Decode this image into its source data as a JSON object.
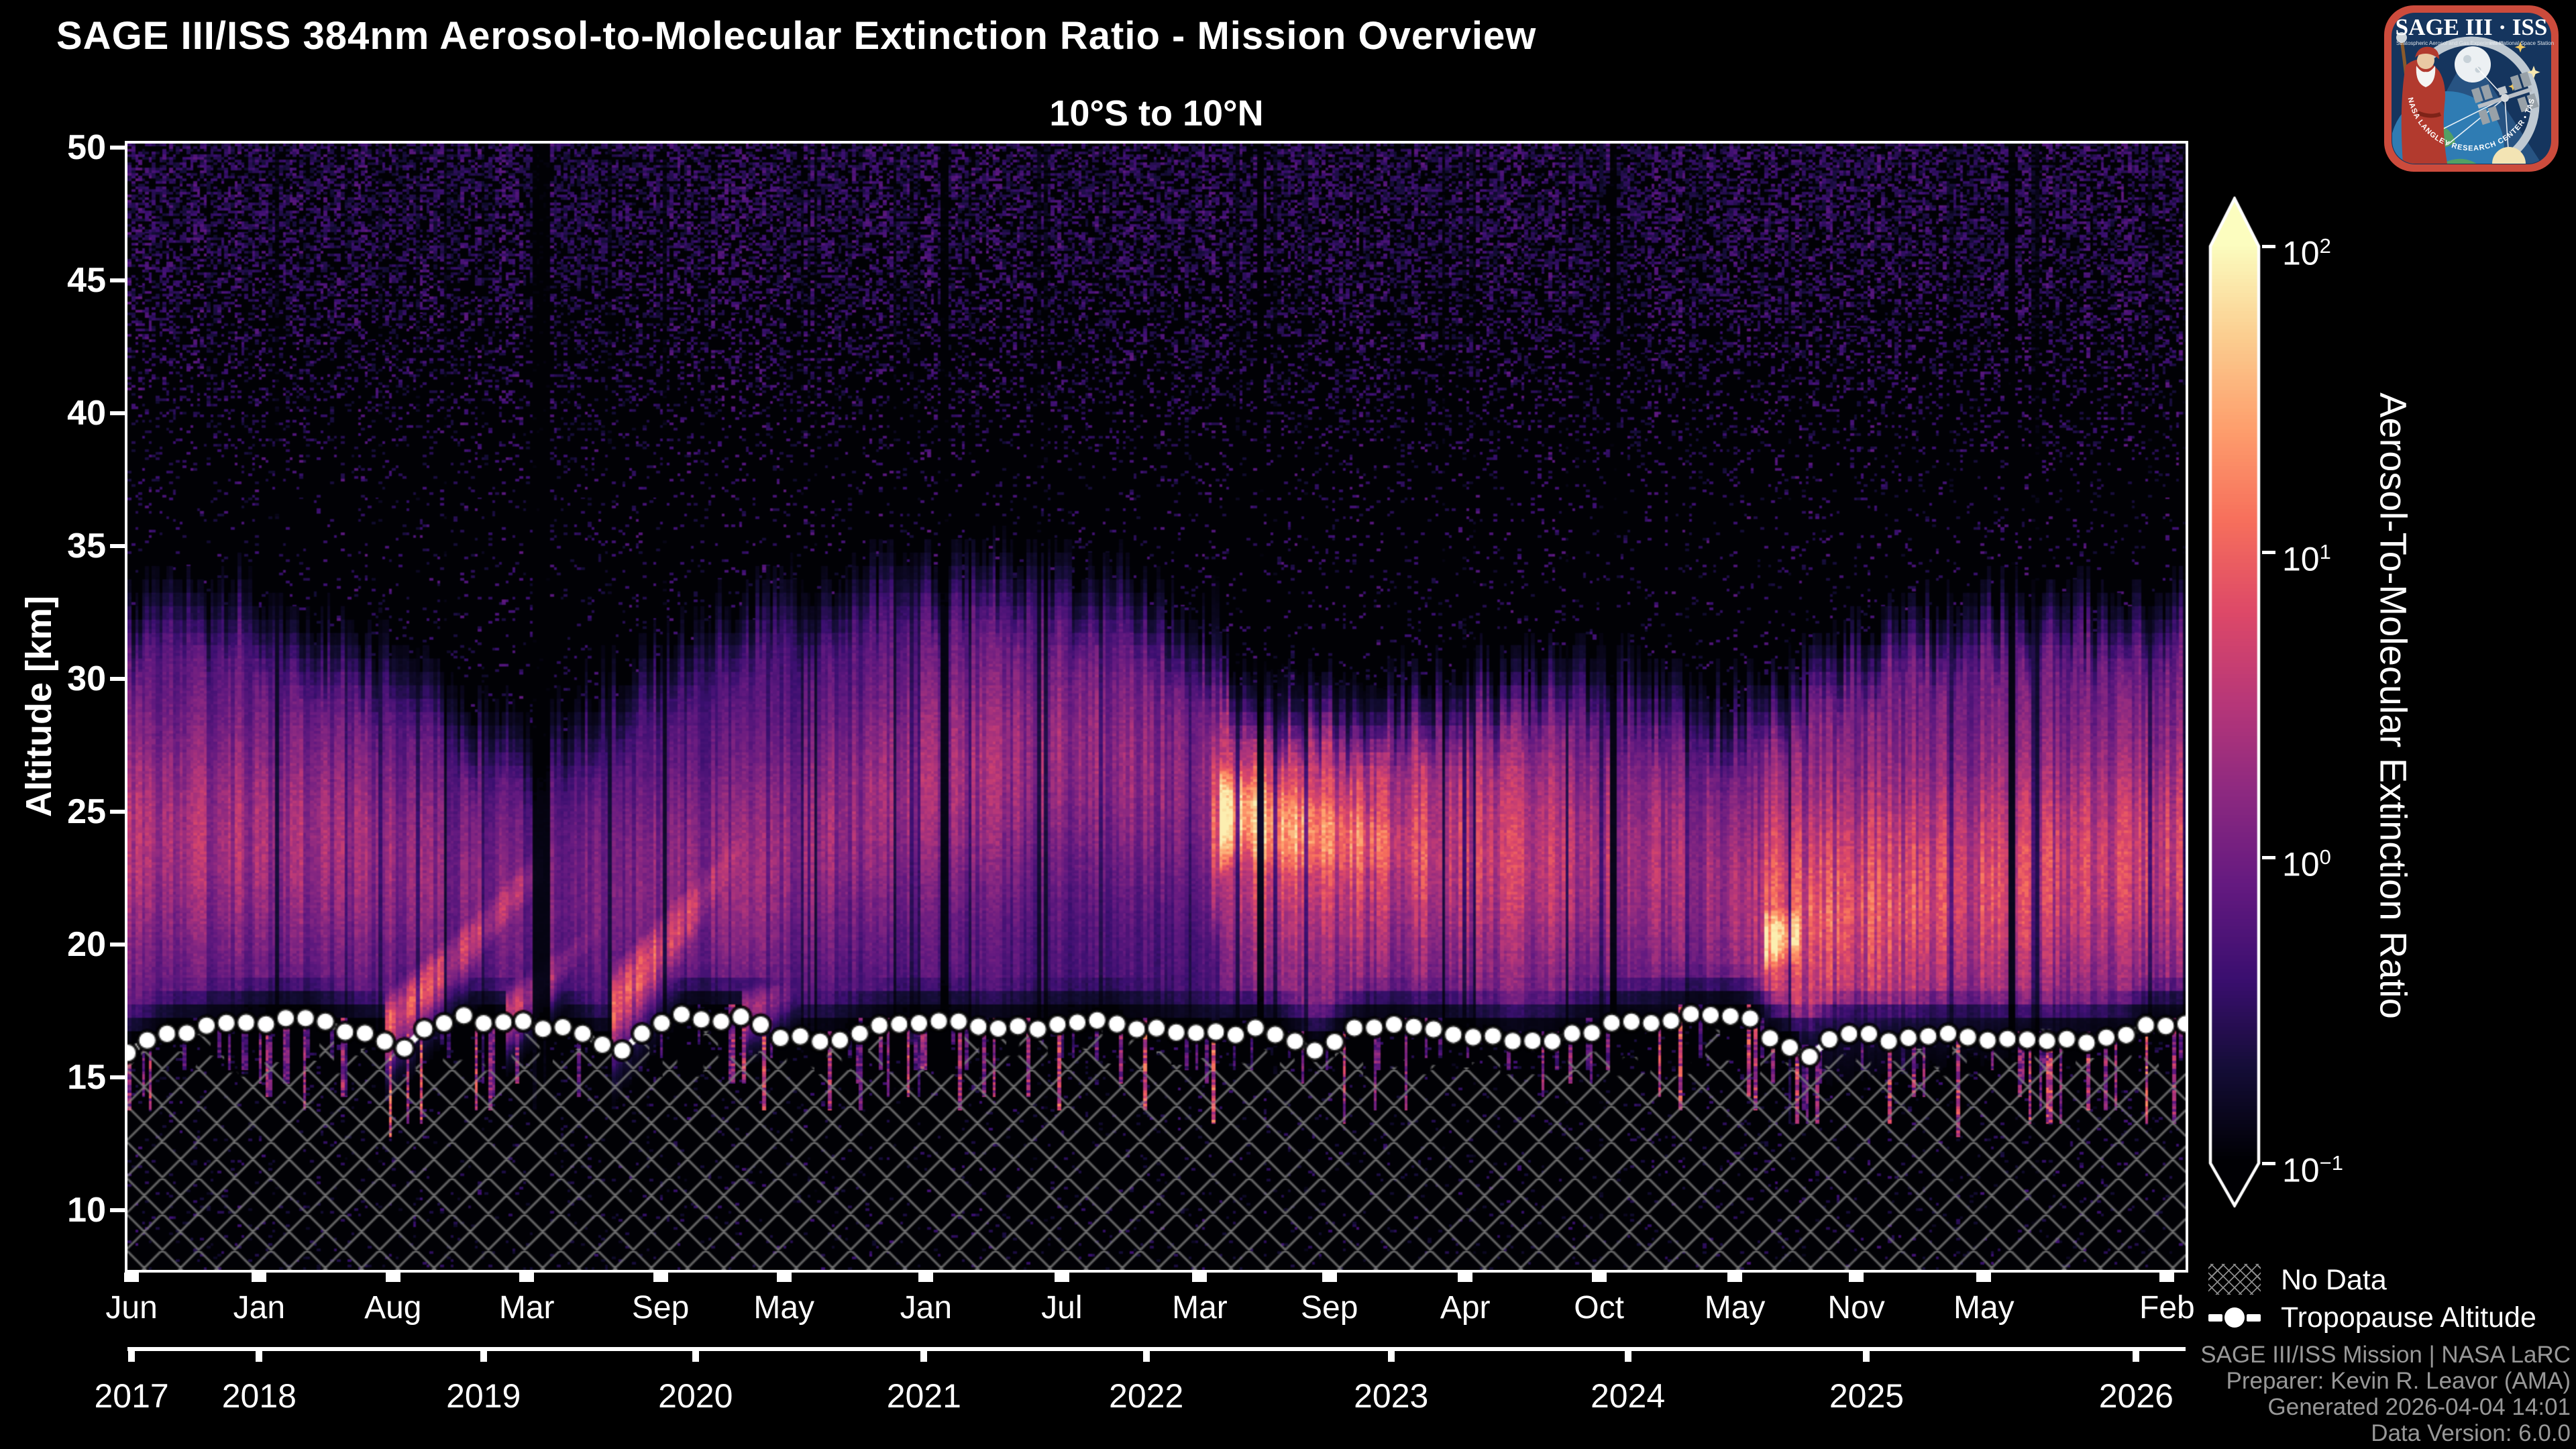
{
  "chart_data": {
    "type": "heatmap",
    "title": "SAGE III/ISS 384nm Aerosol-to-Molecular Extinction Ratio - Mission Overview",
    "subtitle": "10°S to 10°N",
    "ylabel": "Altitude [km]",
    "xlabel": "",
    "colorbar": {
      "label": "Aerosol-To-Molecular Extinction Ratio",
      "scale": "log",
      "vmin": 0.1,
      "vmax": 100,
      "colormap": "magma",
      "ticks": [
        {
          "label": "10²",
          "base": "10",
          "exp": "2",
          "exp_n": 2,
          "value": 100
        },
        {
          "label": "10¹",
          "base": "10",
          "exp": "1",
          "exp_n": 1,
          "value": 10
        },
        {
          "label": "10⁰",
          "base": "10",
          "exp": "0",
          "exp_n": 0,
          "value": 1
        },
        {
          "label": "10⁻¹",
          "base": "10",
          "exp": "−1",
          "exp_n": -1,
          "value": 0.1
        }
      ],
      "colormap_anchors": [
        [
          0.0,
          "#000004"
        ],
        [
          0.1,
          "#140d36"
        ],
        [
          0.2,
          "#3b0f70"
        ],
        [
          0.3,
          "#641a80"
        ],
        [
          0.4,
          "#8c2981"
        ],
        [
          0.5,
          "#b73779"
        ],
        [
          0.6,
          "#de4968"
        ],
        [
          0.7,
          "#f7705c"
        ],
        [
          0.8,
          "#fe9f6d"
        ],
        [
          0.9,
          "#fbce90"
        ],
        [
          1.0,
          "#fcfdbf"
        ]
      ]
    },
    "x_axis": {
      "start": "2017-06",
      "end": "2026-02",
      "span_months": 104,
      "month_ticks": [
        {
          "label": "Jun",
          "f": 0.002
        },
        {
          "label": "Jan",
          "f": 0.064
        },
        {
          "label": "Aug",
          "f": 0.129
        },
        {
          "label": "Mar",
          "f": 0.194
        },
        {
          "label": "Sep",
          "f": 0.259
        },
        {
          "label": "May",
          "f": 0.319
        },
        {
          "label": "Jan",
          "f": 0.388
        },
        {
          "label": "Jul",
          "f": 0.454
        },
        {
          "label": "Mar",
          "f": 0.521
        },
        {
          "label": "Sep",
          "f": 0.584
        },
        {
          "label": "Apr",
          "f": 0.65
        },
        {
          "label": "Oct",
          "f": 0.715
        },
        {
          "label": "May",
          "f": 0.781
        },
        {
          "label": "Nov",
          "f": 0.84
        },
        {
          "label": "May",
          "f": 0.902
        },
        {
          "label": "Feb",
          "f": 0.991
        }
      ],
      "year_ticks": [
        {
          "label": "2017",
          "f": 0.002
        },
        {
          "label": "2018",
          "f": 0.064
        },
        {
          "label": "2019",
          "f": 0.173
        },
        {
          "label": "2020",
          "f": 0.276
        },
        {
          "label": "2021",
          "f": 0.387
        },
        {
          "label": "2022",
          "f": 0.495
        },
        {
          "label": "2023",
          "f": 0.614
        },
        {
          "label": "2024",
          "f": 0.729
        },
        {
          "label": "2025",
          "f": 0.845
        },
        {
          "label": "2026",
          "f": 0.976
        }
      ]
    },
    "y_axis": {
      "ticks": [
        50,
        45,
        40,
        35,
        30,
        25,
        20,
        15,
        10
      ],
      "alt_top": 50.15,
      "alt_bottom": 7.75
    },
    "legend": {
      "no_data": "No Data",
      "tropopause": "Tropopause Altitude"
    },
    "tropopause_altitude_km": [
      [
        0,
        16.0
      ],
      [
        1,
        16.3
      ],
      [
        2,
        16.6
      ],
      [
        3,
        16.7
      ],
      [
        4,
        16.8
      ],
      [
        5,
        16.9
      ],
      [
        6,
        17.0
      ],
      [
        7,
        17.1
      ],
      [
        8,
        17.1
      ],
      [
        9,
        17.2
      ],
      [
        10,
        17.0
      ],
      [
        11,
        16.8
      ],
      [
        12,
        16.7
      ],
      [
        13,
        16.4
      ],
      [
        14,
        16.1
      ],
      [
        15,
        16.9
      ],
      [
        16,
        17.1
      ],
      [
        17,
        17.3
      ],
      [
        18,
        17.1
      ],
      [
        19,
        17.0
      ],
      [
        20,
        17.0
      ],
      [
        21,
        16.9
      ],
      [
        22,
        16.9
      ],
      [
        23,
        16.5
      ],
      [
        24,
        16.2
      ],
      [
        25,
        16.1
      ],
      [
        26,
        16.6
      ],
      [
        27,
        17.1
      ],
      [
        28,
        17.3
      ],
      [
        29,
        17.3
      ],
      [
        30,
        17.2
      ],
      [
        31,
        17.2
      ],
      [
        32,
        17.1
      ],
      [
        33,
        16.6
      ],
      [
        34,
        16.4
      ],
      [
        35,
        16.4
      ],
      [
        36,
        16.5
      ],
      [
        37,
        16.7
      ],
      [
        38,
        16.9
      ],
      [
        39,
        17.0
      ],
      [
        40,
        17.1
      ],
      [
        41,
        17.0
      ],
      [
        42,
        17.0
      ],
      [
        43,
        16.8
      ],
      [
        44,
        16.8
      ],
      [
        45,
        16.9
      ],
      [
        46,
        16.9
      ],
      [
        47,
        17.0
      ],
      [
        48,
        17.0
      ],
      [
        49,
        17.1
      ],
      [
        50,
        17.1
      ],
      [
        51,
        16.9
      ],
      [
        52,
        16.8
      ],
      [
        53,
        16.7
      ],
      [
        54,
        16.6
      ],
      [
        55,
        16.6
      ],
      [
        56,
        16.7
      ],
      [
        57,
        16.8
      ],
      [
        58,
        16.7
      ],
      [
        59,
        16.4
      ],
      [
        60,
        15.9
      ],
      [
        61,
        16.3
      ],
      [
        62,
        16.8
      ],
      [
        63,
        16.9
      ],
      [
        64,
        16.9
      ],
      [
        65,
        16.8
      ],
      [
        66,
        16.8
      ],
      [
        67,
        16.7
      ],
      [
        68,
        16.6
      ],
      [
        69,
        16.5
      ],
      [
        70,
        16.4
      ],
      [
        71,
        16.4
      ],
      [
        72,
        16.5
      ],
      [
        73,
        16.7
      ],
      [
        74,
        16.8
      ],
      [
        75,
        16.9
      ],
      [
        76,
        17.0
      ],
      [
        77,
        17.1
      ],
      [
        78,
        17.2
      ],
      [
        79,
        17.3
      ],
      [
        80,
        17.3
      ],
      [
        81,
        17.4
      ],
      [
        82,
        17.2
      ],
      [
        83,
        16.6
      ],
      [
        84,
        16.1
      ],
      [
        85,
        15.9
      ],
      [
        86,
        16.4
      ],
      [
        87,
        16.5
      ],
      [
        88,
        16.5
      ],
      [
        89,
        16.4
      ],
      [
        90,
        16.4
      ],
      [
        91,
        16.5
      ],
      [
        92,
        16.5
      ],
      [
        93,
        16.5
      ],
      [
        94,
        16.5
      ],
      [
        95,
        16.4
      ],
      [
        96,
        16.4
      ],
      [
        97,
        16.3
      ],
      [
        98,
        16.3
      ],
      [
        99,
        16.4
      ],
      [
        100,
        16.4
      ],
      [
        101,
        16.6
      ],
      [
        102,
        16.9
      ],
      [
        103,
        17.0
      ],
      [
        104,
        17.1
      ]
    ],
    "aerosol_features": {
      "band_top_km": [
        [
          0,
          33
        ],
        [
          6,
          33.5
        ],
        [
          12,
          31.5
        ],
        [
          18,
          29
        ],
        [
          21,
          28.5
        ],
        [
          24,
          30
        ],
        [
          28,
          32
        ],
        [
          32,
          33.5
        ],
        [
          38,
          34.2
        ],
        [
          44,
          34.5
        ],
        [
          50,
          34
        ],
        [
          54,
          32.5
        ],
        [
          57,
          29.5
        ],
        [
          62,
          29.5
        ],
        [
          68,
          30.5
        ],
        [
          74,
          31
        ],
        [
          80,
          29.5
        ],
        [
          84,
          30.5
        ],
        [
          88,
          32
        ],
        [
          94,
          33.2
        ],
        [
          100,
          33
        ],
        [
          104,
          33.2
        ]
      ],
      "band_core_km": [
        [
          0,
          24
        ],
        [
          10,
          24
        ],
        [
          20,
          22
        ],
        [
          26,
          22.5
        ],
        [
          32,
          23
        ],
        [
          40,
          26
        ],
        [
          48,
          27
        ],
        [
          54,
          26
        ],
        [
          56,
          25
        ],
        [
          62,
          24
        ],
        [
          70,
          23.5
        ],
        [
          78,
          23
        ],
        [
          84,
          21
        ],
        [
          92,
          22
        ],
        [
          100,
          23
        ],
        [
          104,
          23.5
        ]
      ],
      "band_core_ratio": [
        [
          0,
          1.9
        ],
        [
          8,
          1.9
        ],
        [
          14,
          1.4
        ],
        [
          20,
          0.79
        ],
        [
          24,
          1.05
        ],
        [
          28,
          1.2
        ],
        [
          34,
          1.4
        ],
        [
          44,
          1.6
        ],
        [
          52,
          1.3
        ],
        [
          55,
          1.1
        ],
        [
          56,
          6.3
        ],
        [
          60,
          4.8
        ],
        [
          66,
          3.6
        ],
        [
          72,
          2.6
        ],
        [
          78,
          1.8
        ],
        [
          82,
          1.6
        ],
        [
          83,
          5.5
        ],
        [
          88,
          4.8
        ],
        [
          94,
          3.9
        ],
        [
          100,
          3.2
        ],
        [
          104,
          3.2
        ]
      ],
      "plumes": [
        {
          "t0": 13.0,
          "t1": 21.0,
          "alt0": 16.8,
          "alt1": 23.0,
          "sig": 1.1,
          "v0": 7,
          "v1": 1.6
        },
        {
          "t0": 19.0,
          "t1": 25.0,
          "alt0": 17.2,
          "alt1": 21.5,
          "sig": 0.9,
          "v0": 3.2,
          "v1": 0.8
        },
        {
          "t0": 24.5,
          "t1": 33.0,
          "alt0": 17.6,
          "alt1": 25.5,
          "sig": 1.4,
          "v0": 9,
          "v1": 1.0
        },
        {
          "t0": 31.0,
          "t1": 34.0,
          "alt0": 17.3,
          "alt1": 18.5,
          "sig": 0.8,
          "v0": 2.2,
          "v1": 0.6
        },
        {
          "t0": 54.8,
          "t1": 55.2,
          "alt0": 24.5,
          "alt1": 24.8,
          "sig": 3.5,
          "v0": 4.5,
          "v1": 11
        },
        {
          "t0": 55.2,
          "t1": 56.8,
          "alt0": 24.8,
          "alt1": 24.9,
          "sig": 1.9,
          "v0": 60,
          "v1": 45
        },
        {
          "t0": 56.8,
          "t1": 68.0,
          "alt0": 24.6,
          "alt1": 23.2,
          "sig": 2.2,
          "v0": 25,
          "v1": 3.2
        },
        {
          "t0": 68.0,
          "t1": 80.0,
          "alt0": 23.2,
          "alt1": 23.0,
          "sig": 2.5,
          "v0": 3.2,
          "v1": 1.3
        },
        {
          "t0": 82.6,
          "t1": 84.4,
          "alt0": 20.2,
          "alt1": 20.4,
          "sig": 1.3,
          "v0": 45,
          "v1": 28
        },
        {
          "t0": 84.4,
          "t1": 104.0,
          "alt0": 21.0,
          "alt1": 22.8,
          "sig": 2.4,
          "v0": 7,
          "v1": 2.6
        }
      ],
      "data_gap_months": [
        [
          20.4,
          21.3
        ],
        [
          41.0,
          41.4
        ],
        [
          57.0,
          57.35
        ],
        [
          74.8,
          75.2
        ],
        [
          95.0,
          95.35
        ]
      ]
    },
    "no_data_region": {
      "below_km": 15.5,
      "hatch": "xx"
    }
  },
  "footer": {
    "lines": [
      "SAGE III/ISS Mission | NASA LaRC",
      "Preparer: Kevin R. Leavor (AMA)",
      "Generated 2026-04-04 14:01",
      "Data Version: 6.0.0"
    ]
  },
  "logo": {
    "title": "SAGE III · ISS",
    "subtitle_left": "Stratospheric Aerosol and Gas Experiment III",
    "subtitle_right": "International Space Station",
    "ring_text": "BALL • NASA LANGLEY RESEARCH CENTER • TAS-I • ESA"
  }
}
